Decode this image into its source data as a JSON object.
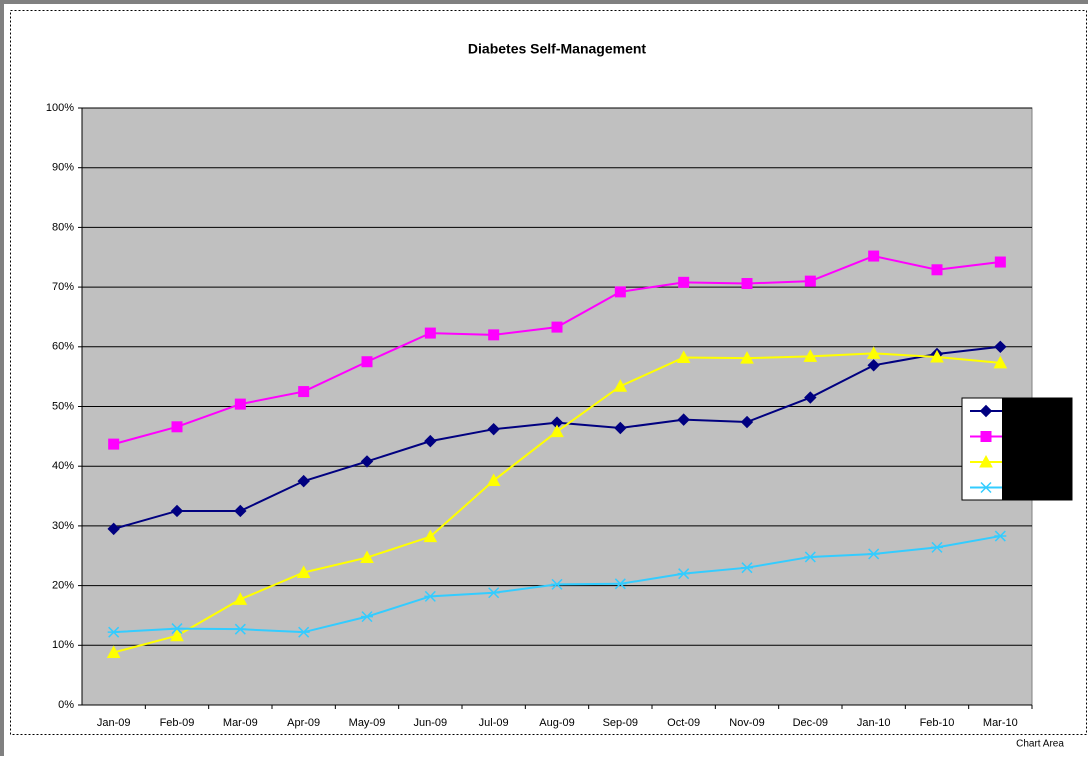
{
  "chart_data": {
    "type": "line",
    "title": "Diabetes Self-Management",
    "categories": [
      "Jan-09",
      "Feb-09",
      "Mar-09",
      "Apr-09",
      "May-09",
      "Jun-09",
      "Jul-09",
      "Aug-09",
      "Sep-09",
      "Oct-09",
      "Nov-09",
      "Dec-09",
      "Jan-10",
      "Feb-10",
      "Mar-10"
    ],
    "series": [
      {
        "color": "#000080",
        "marker": "diamond",
        "values": [
          29.5,
          32.5,
          32.5,
          37.5,
          40.8,
          44.2,
          46.2,
          47.3,
          46.4,
          47.8,
          47.4,
          51.5,
          56.9,
          58.8,
          60.0
        ]
      },
      {
        "color": "#ff00ff",
        "marker": "square",
        "values": [
          43.7,
          46.6,
          50.4,
          52.5,
          57.5,
          62.3,
          62.0,
          63.3,
          69.2,
          70.8,
          70.6,
          71.0,
          75.2,
          72.9,
          74.2
        ]
      },
      {
        "color": "#ffff00",
        "marker": "triangle",
        "values": [
          8.8,
          11.6,
          17.7,
          22.2,
          24.7,
          28.2,
          37.6,
          45.8,
          53.4,
          58.2,
          58.1,
          58.4,
          58.9,
          58.3,
          57.3
        ]
      },
      {
        "color": "#33ccff",
        "marker": "star",
        "values": [
          12.2,
          12.8,
          12.7,
          12.2,
          14.8,
          18.2,
          18.8,
          20.2,
          20.3,
          22.0,
          23.0,
          24.8,
          25.3,
          26.4,
          28.3
        ]
      }
    ],
    "ylim": [
      0,
      100
    ],
    "yticks": [
      {
        "value": 0,
        "label": "0%"
      },
      {
        "value": 10,
        "label": "10%"
      },
      {
        "value": 20,
        "label": "20%"
      },
      {
        "value": 30,
        "label": "30%"
      },
      {
        "value": 40,
        "label": "40%"
      },
      {
        "value": 50,
        "label": "50%"
      },
      {
        "value": 60,
        "label": "60%"
      },
      {
        "value": 70,
        "label": "70%"
      },
      {
        "value": 80,
        "label": "80%"
      },
      {
        "value": 90,
        "label": "90%"
      },
      {
        "value": 100,
        "label": "100%"
      }
    ],
    "grid": true,
    "plot_background": "#c0c0c0",
    "legend": "right",
    "tooltip": "Chart Area"
  }
}
